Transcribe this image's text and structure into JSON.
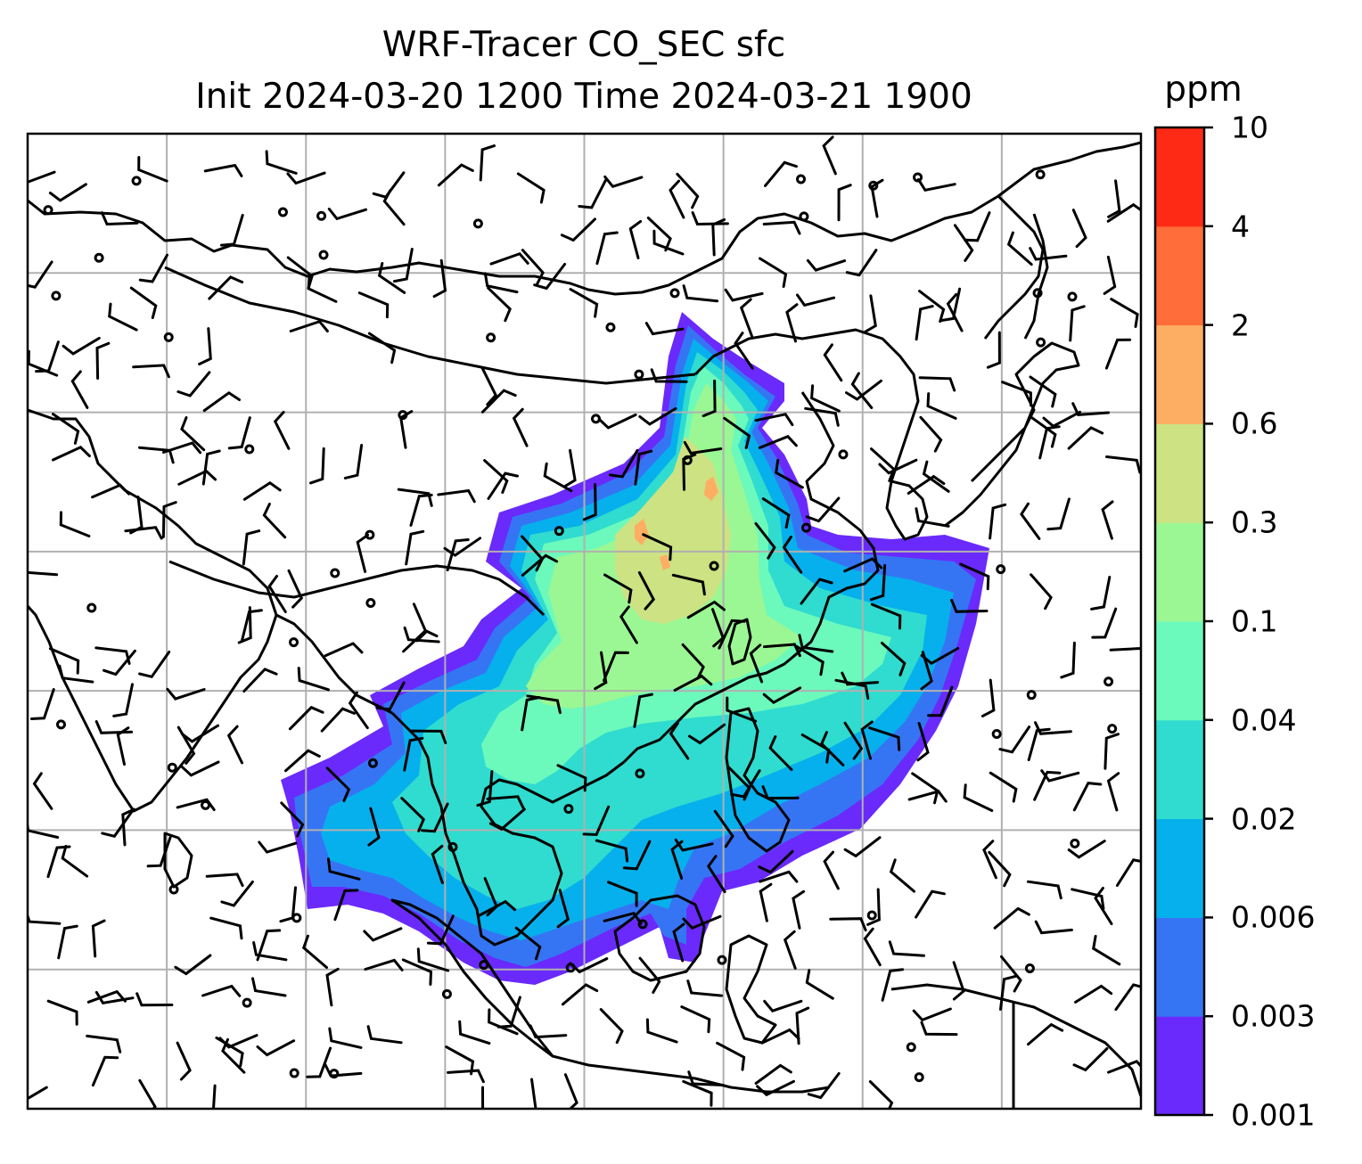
{
  "title": {
    "line1": "WRF-Tracer CO_SEC sfc",
    "line2": "Init 2024-03-20 1200 Time 2024-03-21 1900"
  },
  "colorbar": {
    "unit": "ppm",
    "levels": [
      "0.001",
      "0.003",
      "0.006",
      "0.02",
      "0.04",
      "0.1",
      "0.3",
      "0.6",
      "2",
      "4",
      "10"
    ],
    "colors": [
      "#6a2afb",
      "#3575f4",
      "#06b0ec",
      "#2fdccf",
      "#6cf9bc",
      "#9bf793",
      "#cce283",
      "#fdae63",
      "#ff6d3a",
      "#ff2a16"
    ]
  },
  "map": {
    "background": "#ffffff",
    "gridline_color": "#b0b0b0",
    "coastline_color": "#000000",
    "grid_columns": 8,
    "grid_rows": 7
  }
}
